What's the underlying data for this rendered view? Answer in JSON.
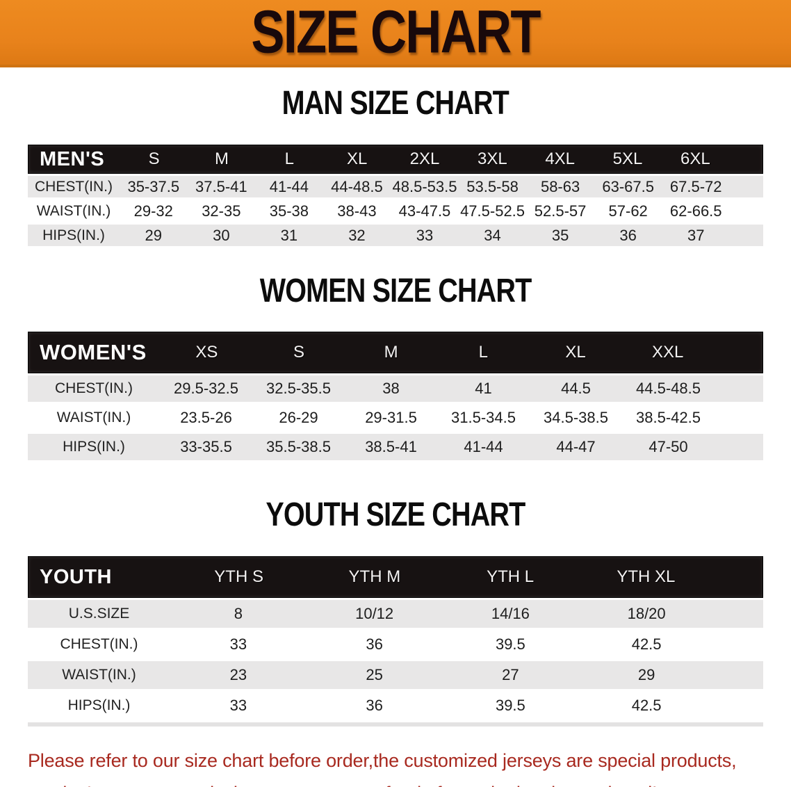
{
  "banner": {
    "title": "SIZE CHART",
    "bg_color": "#e8821b",
    "text_color": "#19090b"
  },
  "sections": [
    {
      "id": "men",
      "heading": "MAN SIZE CHART",
      "group_label": "MEN'S",
      "sizes": [
        "S",
        "M",
        "L",
        "XL",
        "2XL",
        "3XL",
        "4XL",
        "5XL",
        "6XL"
      ],
      "rows": [
        {
          "label": "CHEST(IN.)",
          "values": [
            "35-37.5",
            "37.5-41",
            "41-44",
            "44-48.5",
            "48.5-53.5",
            "53.5-58",
            "58-63",
            "63-67.5",
            "67.5-72"
          ]
        },
        {
          "label": "WAIST(IN.)",
          "values": [
            "29-32",
            "32-35",
            "35-38",
            "38-43",
            "43-47.5",
            "47.5-52.5",
            "52.5-57",
            "57-62",
            "62-66.5"
          ]
        },
        {
          "label": "HIPS(IN.)",
          "values": [
            "29",
            "30",
            "31",
            "32",
            "33",
            "34",
            "35",
            "36",
            "37"
          ]
        }
      ]
    },
    {
      "id": "women",
      "heading": "WOMEN SIZE CHART",
      "group_label": "WOMEN'S",
      "sizes": [
        "XS",
        "S",
        "M",
        "L",
        "XL",
        "XXL"
      ],
      "rows": [
        {
          "label": "CHEST(IN.)",
          "values": [
            "29.5-32.5",
            "32.5-35.5",
            "38",
            "41",
            "44.5",
            "44.5-48.5"
          ]
        },
        {
          "label": "WAIST(IN.)",
          "values": [
            "23.5-26",
            "26-29",
            "29-31.5",
            "31.5-34.5",
            "34.5-38.5",
            "38.5-42.5"
          ]
        },
        {
          "label": "HIPS(IN.)",
          "values": [
            "33-35.5",
            "35.5-38.5",
            "38.5-41",
            "41-44",
            "44-47",
            "47-50"
          ]
        }
      ]
    },
    {
      "id": "youth",
      "heading": "YOUTH SIZE CHART",
      "group_label": "YOUTH",
      "sizes": [
        "YTH S",
        "YTH M",
        "YTH L",
        "YTH XL"
      ],
      "rows": [
        {
          "label": "U.S.SIZE",
          "values": [
            "8",
            "10/12",
            "14/16",
            "18/20"
          ]
        },
        {
          "label": "CHEST(IN.)",
          "values": [
            "33",
            "36",
            "39.5",
            "42.5"
          ]
        },
        {
          "label": "WAIST(IN.)",
          "values": [
            "23",
            "25",
            "27",
            "29"
          ]
        },
        {
          "label": "HIPS(IN.)",
          "values": [
            "33",
            "36",
            "39.5",
            "42.5"
          ]
        }
      ]
    }
  ],
  "disclaimer": {
    "line1": "Please refer to our size chart before order,the customized jerseys are special products,",
    "line2": "we don't accept cancel, change, teturn or refund after order has been placed!",
    "color": "#a8291f"
  }
}
